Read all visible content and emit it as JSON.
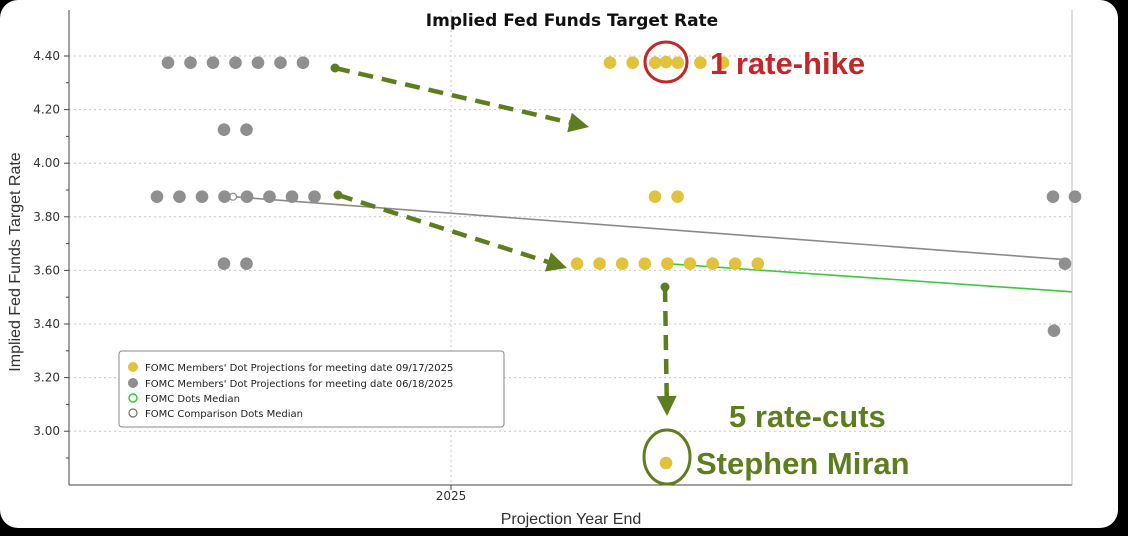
{
  "chart_data": {
    "type": "scatter",
    "title": "Implied Fed Funds Target Rate",
    "xlabel": "Projection Year End",
    "ylabel": "Implied Fed Funds Target Rate",
    "x_tick_labels": [
      "2025"
    ],
    "y_tick_labels": [
      "4.40",
      "4.20",
      "4.00",
      "3.80",
      "3.60",
      "3.40",
      "3.20",
      "3.00"
    ],
    "ylim": [
      2.81,
      4.6
    ],
    "grid": true,
    "legend_position": "bottom-left",
    "legend": [
      {
        "label": "FOMC Members' Dot Projections for meeting date 09/17/2025",
        "symbol": "filled",
        "color": "#e0c23c"
      },
      {
        "label": "FOMC Members' Dot Projections for meeting date 06/18/2025",
        "symbol": "filled",
        "color": "#8f8f8f"
      },
      {
        "label": "FOMC Dots Median",
        "symbol": "hollow",
        "color": "#3cc83c"
      },
      {
        "label": "FOMC Comparison Dots Median",
        "symbol": "hollow",
        "color": "#6e6e6e"
      }
    ],
    "series": [
      {
        "name": "FOMC Members' Dot Projections for meeting date 09/17/2025",
        "color": "#e0c23c",
        "groups": [
          {
            "rate": 4.375,
            "count": 6
          },
          {
            "rate": 3.875,
            "count": 2
          },
          {
            "rate": 3.625,
            "count": 9
          },
          {
            "rate": 4.375,
            "count": 1,
            "highlight": "1 rate-hike"
          },
          {
            "rate": 2.875,
            "count": 1,
            "highlight": "5 rate-cuts / Stephen Miran"
          }
        ]
      },
      {
        "name": "FOMC Members' Dot Projections for meeting date 06/18/2025",
        "color": "#8f8f8f",
        "groups": [
          {
            "rate": 4.375,
            "count": 7
          },
          {
            "rate": 4.125,
            "count": 2
          },
          {
            "rate": 3.875,
            "count": 8
          },
          {
            "rate": 3.625,
            "count": 2
          },
          {
            "rate": 3.875,
            "count": 2,
            "position": "right-edge"
          },
          {
            "rate": 3.625,
            "count": 1,
            "position": "right-edge"
          },
          {
            "rate": 3.375,
            "count": 1,
            "position": "right-edge"
          }
        ]
      },
      {
        "name": "FOMC Dots Median",
        "color": "#3cc83c",
        "from": 3.625,
        "to": 3.52
      },
      {
        "name": "FOMC Comparison Dots Median",
        "color": "#8a8a8a",
        "from": 3.875,
        "to": 3.64
      }
    ],
    "annotations": [
      {
        "text": "1 rate-hike",
        "color": "#c0282a"
      },
      {
        "text": "5 rate-cuts",
        "color": "#5e7d1e"
      },
      {
        "text": "Stephen Miran",
        "color": "#5e7d1e"
      }
    ],
    "arrow_color": "#5e7d1e"
  }
}
